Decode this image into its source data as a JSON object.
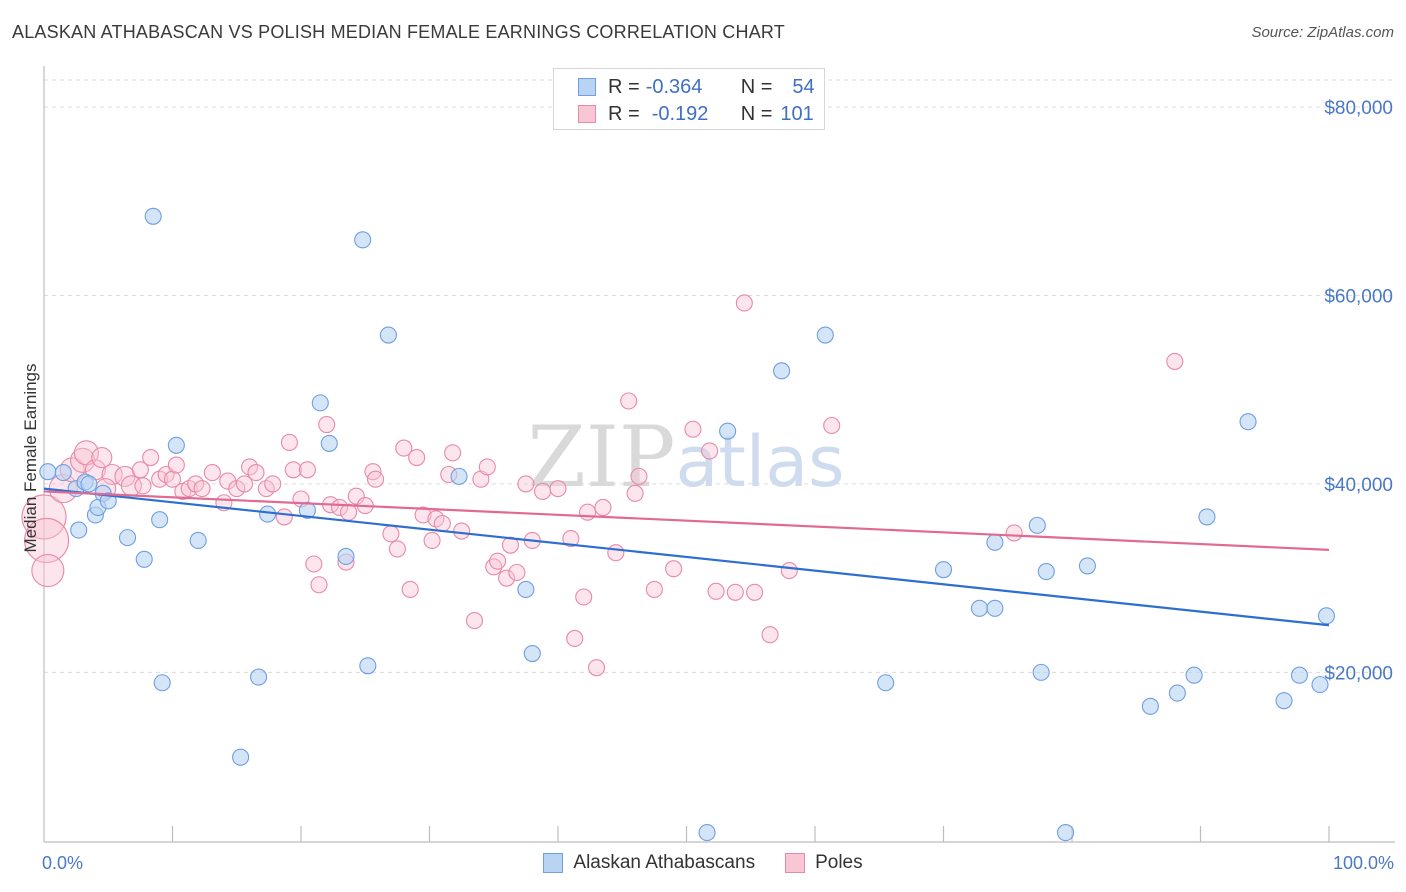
{
  "title": "ALASKAN ATHABASCAN VS POLISH MEDIAN FEMALE EARNINGS CORRELATION CHART",
  "source": "Source: ZipAtlas.com",
  "watermark": "ZIPatlas",
  "colors": {
    "blue_fill": "#b9d3f3",
    "blue_stroke": "#6f9fe0",
    "blue_line": "#2d6fd1",
    "pink_fill": "#f8c6d5",
    "pink_stroke": "#e889a8",
    "pink_line": "#e06a93",
    "tick_text": "#4a78c9"
  },
  "legend_top": [
    {
      "r_label": "R =",
      "r_value": "-0.364",
      "n_label": "N =",
      "n_value": "54"
    },
    {
      "r_label": "R =",
      "r_value": "-0.192",
      "n_label": "N =",
      "n_value": "101"
    }
  ],
  "chart_data": {
    "type": "scatter",
    "title": "ALASKAN ATHABASCAN VS POLISH MEDIAN FEMALE EARNINGS CORRELATION CHART",
    "xlabel": "",
    "ylabel": "Median Female Earnings",
    "xlim": [
      0,
      100
    ],
    "ylim": [
      2000,
      83500
    ],
    "x_tick_labels": [
      "0.0%",
      "100.0%"
    ],
    "y_ticks": [
      20000,
      40000,
      60000,
      80000
    ],
    "y_tick_labels": [
      "$20,000",
      "$40,000",
      "$60,000",
      "$80,000"
    ],
    "grid": "horizontal dashed",
    "legend_position": "top-center and bottom",
    "series": [
      {
        "name": "Alaskan Athabascans",
        "color": "#6f9fe0",
        "trend": {
          "x": [
            0,
            100
          ],
          "y": [
            39500,
            25000
          ]
        },
        "points": [
          {
            "x": 0.3,
            "y": 41300,
            "s": 8
          },
          {
            "x": 1.5,
            "y": 41200,
            "s": 8
          },
          {
            "x": 2.5,
            "y": 39500,
            "s": 8
          },
          {
            "x": 3.2,
            "y": 40200,
            "s": 8
          },
          {
            "x": 3.5,
            "y": 40000,
            "s": 8
          },
          {
            "x": 4.0,
            "y": 36700,
            "s": 8
          },
          {
            "x": 4.2,
            "y": 37500,
            "s": 8
          },
          {
            "x": 4.6,
            "y": 39000,
            "s": 8
          },
          {
            "x": 5.0,
            "y": 38200,
            "s": 8
          },
          {
            "x": 2.7,
            "y": 35100,
            "s": 8
          },
          {
            "x": 6.5,
            "y": 34300,
            "s": 8
          },
          {
            "x": 7.8,
            "y": 32000,
            "s": 8
          },
          {
            "x": 8.5,
            "y": 68400,
            "s": 8
          },
          {
            "x": 9.0,
            "y": 36200,
            "s": 8
          },
          {
            "x": 9.2,
            "y": 18900,
            "s": 8
          },
          {
            "x": 10.3,
            "y": 44100,
            "s": 8
          },
          {
            "x": 12.0,
            "y": 34000,
            "s": 8
          },
          {
            "x": 15.3,
            "y": 11000,
            "s": 8
          },
          {
            "x": 16.7,
            "y": 19500,
            "s": 8
          },
          {
            "x": 17.4,
            "y": 36800,
            "s": 8
          },
          {
            "x": 20.5,
            "y": 37200,
            "s": 8
          },
          {
            "x": 21.5,
            "y": 48600,
            "s": 8
          },
          {
            "x": 22.2,
            "y": 44300,
            "s": 8
          },
          {
            "x": 23.5,
            "y": 32300,
            "s": 8
          },
          {
            "x": 24.8,
            "y": 65900,
            "s": 8
          },
          {
            "x": 25.2,
            "y": 20700,
            "s": 8
          },
          {
            "x": 26.8,
            "y": 55800,
            "s": 8
          },
          {
            "x": 32.3,
            "y": 40800,
            "s": 8
          },
          {
            "x": 37.5,
            "y": 28800,
            "s": 8
          },
          {
            "x": 38.0,
            "y": 22000,
            "s": 8
          },
          {
            "x": 51.6,
            "y": 3000,
            "s": 8
          },
          {
            "x": 53.2,
            "y": 45600,
            "s": 8
          },
          {
            "x": 57.4,
            "y": 52000,
            "s": 8
          },
          {
            "x": 60.8,
            "y": 55800,
            "s": 8
          },
          {
            "x": 65.5,
            "y": 18900,
            "s": 8
          },
          {
            "x": 70.0,
            "y": 30900,
            "s": 8
          },
          {
            "x": 72.8,
            "y": 26800,
            "s": 8
          },
          {
            "x": 74.0,
            "y": 26800,
            "s": 8
          },
          {
            "x": 74.0,
            "y": 33800,
            "s": 8
          },
          {
            "x": 77.3,
            "y": 35600,
            "s": 8
          },
          {
            "x": 78.0,
            "y": 30700,
            "s": 8
          },
          {
            "x": 77.6,
            "y": 20000,
            "s": 8
          },
          {
            "x": 79.5,
            "y": 3000,
            "s": 8
          },
          {
            "x": 81.2,
            "y": 31300,
            "s": 8
          },
          {
            "x": 86.1,
            "y": 16400,
            "s": 8
          },
          {
            "x": 88.2,
            "y": 17800,
            "s": 8
          },
          {
            "x": 89.5,
            "y": 19700,
            "s": 8
          },
          {
            "x": 90.5,
            "y": 36500,
            "s": 8
          },
          {
            "x": 93.7,
            "y": 46600,
            "s": 8
          },
          {
            "x": 96.5,
            "y": 17000,
            "s": 8
          },
          {
            "x": 97.7,
            "y": 19700,
            "s": 8
          },
          {
            "x": 99.3,
            "y": 18700,
            "s": 8
          },
          {
            "x": 99.8,
            "y": 26000,
            "s": 8
          }
        ]
      },
      {
        "name": "Poles",
        "color": "#e889a8",
        "trend": {
          "x": [
            0,
            100
          ],
          "y": [
            39200,
            33000
          ]
        },
        "points": [
          {
            "x": 0.0,
            "y": 36500,
            "s": 22
          },
          {
            "x": 0.2,
            "y": 34000,
            "s": 22
          },
          {
            "x": 0.3,
            "y": 30800,
            "s": 16
          },
          {
            "x": 1.5,
            "y": 39500,
            "s": 14
          },
          {
            "x": 2.2,
            "y": 41500,
            "s": 12
          },
          {
            "x": 3.0,
            "y": 42500,
            "s": 12
          },
          {
            "x": 3.3,
            "y": 43300,
            "s": 12
          },
          {
            "x": 4.0,
            "y": 41500,
            "s": 10
          },
          {
            "x": 4.5,
            "y": 42800,
            "s": 10
          },
          {
            "x": 5.3,
            "y": 41000,
            "s": 10
          },
          {
            "x": 4.8,
            "y": 39500,
            "s": 10
          },
          {
            "x": 6.3,
            "y": 40800,
            "s": 10
          },
          {
            "x": 6.8,
            "y": 39800,
            "s": 10
          },
          {
            "x": 7.5,
            "y": 41500,
            "s": 8
          },
          {
            "x": 7.7,
            "y": 39800,
            "s": 8
          },
          {
            "x": 8.3,
            "y": 42800,
            "s": 8
          },
          {
            "x": 9.0,
            "y": 40500,
            "s": 8
          },
          {
            "x": 9.5,
            "y": 41000,
            "s": 8
          },
          {
            "x": 10.0,
            "y": 40500,
            "s": 8
          },
          {
            "x": 10.3,
            "y": 42000,
            "s": 8
          },
          {
            "x": 10.8,
            "y": 39200,
            "s": 8
          },
          {
            "x": 11.3,
            "y": 39500,
            "s": 8
          },
          {
            "x": 11.8,
            "y": 40000,
            "s": 8
          },
          {
            "x": 12.3,
            "y": 39500,
            "s": 8
          },
          {
            "x": 13.1,
            "y": 41200,
            "s": 8
          },
          {
            "x": 14.0,
            "y": 38000,
            "s": 8
          },
          {
            "x": 14.3,
            "y": 40300,
            "s": 8
          },
          {
            "x": 15.0,
            "y": 39500,
            "s": 8
          },
          {
            "x": 15.6,
            "y": 40000,
            "s": 8
          },
          {
            "x": 16.0,
            "y": 41800,
            "s": 8
          },
          {
            "x": 16.5,
            "y": 41200,
            "s": 8
          },
          {
            "x": 17.3,
            "y": 39500,
            "s": 8
          },
          {
            "x": 17.8,
            "y": 40000,
            "s": 8
          },
          {
            "x": 18.7,
            "y": 36500,
            "s": 8
          },
          {
            "x": 19.1,
            "y": 44400,
            "s": 8
          },
          {
            "x": 19.4,
            "y": 41500,
            "s": 8
          },
          {
            "x": 20.0,
            "y": 38400,
            "s": 8
          },
          {
            "x": 20.5,
            "y": 41500,
            "s": 8
          },
          {
            "x": 21.0,
            "y": 31500,
            "s": 8
          },
          {
            "x": 21.4,
            "y": 29300,
            "s": 8
          },
          {
            "x": 22.0,
            "y": 46300,
            "s": 8
          },
          {
            "x": 22.3,
            "y": 37800,
            "s": 8
          },
          {
            "x": 23.0,
            "y": 37500,
            "s": 8
          },
          {
            "x": 23.5,
            "y": 31700,
            "s": 8
          },
          {
            "x": 23.7,
            "y": 37000,
            "s": 8
          },
          {
            "x": 24.3,
            "y": 38700,
            "s": 8
          },
          {
            "x": 25.0,
            "y": 37700,
            "s": 8
          },
          {
            "x": 25.6,
            "y": 41300,
            "s": 8
          },
          {
            "x": 25.8,
            "y": 40500,
            "s": 8
          },
          {
            "x": 27.0,
            "y": 34700,
            "s": 8
          },
          {
            "x": 27.5,
            "y": 33100,
            "s": 8
          },
          {
            "x": 28.0,
            "y": 43800,
            "s": 8
          },
          {
            "x": 28.5,
            "y": 28800,
            "s": 8
          },
          {
            "x": 29.0,
            "y": 42800,
            "s": 8
          },
          {
            "x": 29.5,
            "y": 36700,
            "s": 8
          },
          {
            "x": 30.2,
            "y": 34000,
            "s": 8
          },
          {
            "x": 30.5,
            "y": 36300,
            "s": 8
          },
          {
            "x": 31.0,
            "y": 35800,
            "s": 8
          },
          {
            "x": 31.5,
            "y": 41000,
            "s": 8
          },
          {
            "x": 31.8,
            "y": 43300,
            "s": 8
          },
          {
            "x": 32.5,
            "y": 35000,
            "s": 8
          },
          {
            "x": 33.5,
            "y": 25500,
            "s": 8
          },
          {
            "x": 34.0,
            "y": 40500,
            "s": 8
          },
          {
            "x": 34.5,
            "y": 41800,
            "s": 8
          },
          {
            "x": 35.0,
            "y": 31200,
            "s": 8
          },
          {
            "x": 35.3,
            "y": 31800,
            "s": 8
          },
          {
            "x": 36.0,
            "y": 30000,
            "s": 8
          },
          {
            "x": 36.3,
            "y": 33500,
            "s": 8
          },
          {
            "x": 36.8,
            "y": 30600,
            "s": 8
          },
          {
            "x": 37.5,
            "y": 40000,
            "s": 8
          },
          {
            "x": 38.0,
            "y": 34000,
            "s": 8
          },
          {
            "x": 38.8,
            "y": 39200,
            "s": 8
          },
          {
            "x": 40.0,
            "y": 39500,
            "s": 8
          },
          {
            "x": 41.0,
            "y": 34200,
            "s": 8
          },
          {
            "x": 41.3,
            "y": 23600,
            "s": 8
          },
          {
            "x": 42.0,
            "y": 28000,
            "s": 8
          },
          {
            "x": 42.3,
            "y": 37000,
            "s": 8
          },
          {
            "x": 43.0,
            "y": 20500,
            "s": 8
          },
          {
            "x": 43.5,
            "y": 37500,
            "s": 8
          },
          {
            "x": 44.5,
            "y": 32700,
            "s": 8
          },
          {
            "x": 45.5,
            "y": 48800,
            "s": 8
          },
          {
            "x": 46.0,
            "y": 39000,
            "s": 8
          },
          {
            "x": 46.3,
            "y": 40800,
            "s": 8
          },
          {
            "x": 47.5,
            "y": 28800,
            "s": 8
          },
          {
            "x": 49.0,
            "y": 31000,
            "s": 8
          },
          {
            "x": 50.5,
            "y": 45800,
            "s": 8
          },
          {
            "x": 51.8,
            "y": 43500,
            "s": 8
          },
          {
            "x": 52.3,
            "y": 28600,
            "s": 8
          },
          {
            "x": 53.8,
            "y": 28500,
            "s": 8
          },
          {
            "x": 54.5,
            "y": 59200,
            "s": 8
          },
          {
            "x": 55.3,
            "y": 28500,
            "s": 8
          },
          {
            "x": 56.5,
            "y": 24000,
            "s": 8
          },
          {
            "x": 58.0,
            "y": 30800,
            "s": 8
          },
          {
            "x": 61.3,
            "y": 46200,
            "s": 8
          },
          {
            "x": 75.5,
            "y": 34800,
            "s": 8
          },
          {
            "x": 88.0,
            "y": 53000,
            "s": 8
          }
        ]
      }
    ]
  }
}
